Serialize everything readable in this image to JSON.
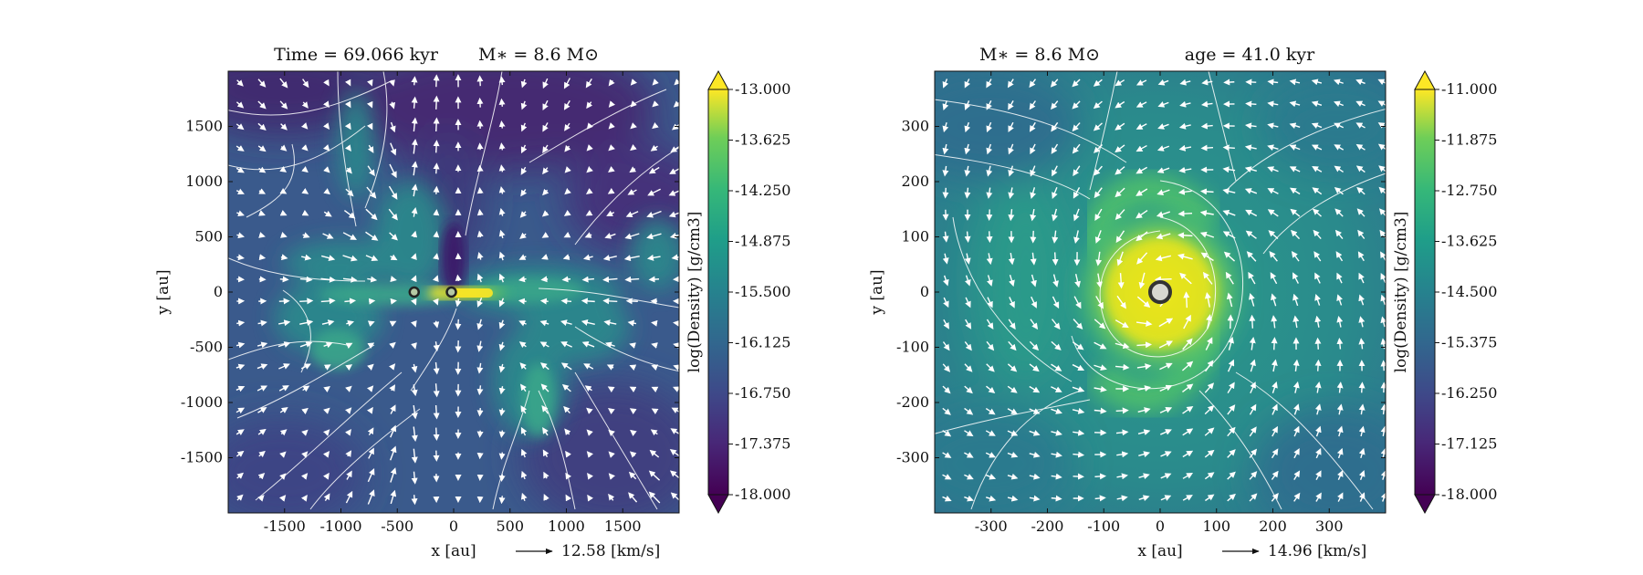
{
  "chart_data": [
    {
      "type": "heatmap",
      "title_left": "Time = 69.066 kyr",
      "title_right": "M∗ = 8.6 M⊙",
      "xlabel": "x [au]",
      "ylabel": "y [au]",
      "xlim": [
        -2000,
        2000
      ],
      "ylim": [
        -2000,
        2000
      ],
      "xticks": [
        -1500,
        -1000,
        -500,
        0,
        500,
        1000,
        1500
      ],
      "xtick_labels": [
        "-1500",
        "-1000",
        "-500",
        "0",
        "500",
        "1000",
        "1500"
      ],
      "yticks": [
        1500,
        1000,
        500,
        0,
        -500,
        -1000,
        -1500
      ],
      "ytick_labels": [
        "1500",
        "1000",
        "500",
        "0",
        "-500",
        "-1000",
        "-1500"
      ],
      "colorbar_label": "log(Density) [g/cm3]",
      "colorbar_range": [
        -18.0,
        -13.0
      ],
      "colorbar_ticks": [
        "-13.000",
        "-13.625",
        "-14.250",
        "-14.875",
        "-15.500",
        "-16.125",
        "-16.750",
        "-17.375",
        "-18.000"
      ],
      "velocity_key": "12.58 [km/s]",
      "sinks": [
        {
          "x": -350,
          "y": 0
        },
        {
          "x": -20,
          "y": 0
        }
      ],
      "features": "filamentary structure with dense disk-like bar near origin; streamlines and velocity arrows overlay"
    },
    {
      "type": "heatmap",
      "title_left": "M∗ = 8.6 M⊙",
      "title_right": "age = 41.0 kyr",
      "xlabel": "x [au]",
      "ylabel": "y [au]",
      "xlim": [
        -400,
        400
      ],
      "ylim": [
        -400,
        400
      ],
      "xticks": [
        -300,
        -200,
        -100,
        0,
        100,
        200,
        300
      ],
      "xtick_labels": [
        "-300",
        "-200",
        "-100",
        "0",
        "100",
        "200",
        "300"
      ],
      "yticks": [
        300,
        200,
        100,
        0,
        -100,
        -200,
        -300
      ],
      "ytick_labels": [
        "300",
        "200",
        "100",
        "0",
        "-100",
        "-200",
        "-300"
      ],
      "colorbar_label": "log(Density) [g/cm3]",
      "colorbar_range": [
        -18.0,
        -11.0
      ],
      "colorbar_ticks": [
        "-11.000",
        "-11.875",
        "-12.750",
        "-13.625",
        "-14.500",
        "-15.375",
        "-16.250",
        "-17.125",
        "-18.000"
      ],
      "velocity_key": "14.96 [km/s]",
      "sinks": [
        {
          "x": 0,
          "y": 0
        }
      ],
      "features": "dense rotating disk with spiral arms centered at origin; streamlines and velocity arrows overlay"
    }
  ],
  "colors": {
    "viridis_dark": "#440154",
    "viridis_blue": "#3b528b",
    "viridis_teal": "#21918c",
    "viridis_green": "#5ec962",
    "viridis_yellow": "#fde725",
    "arrow": "#ffffff"
  }
}
